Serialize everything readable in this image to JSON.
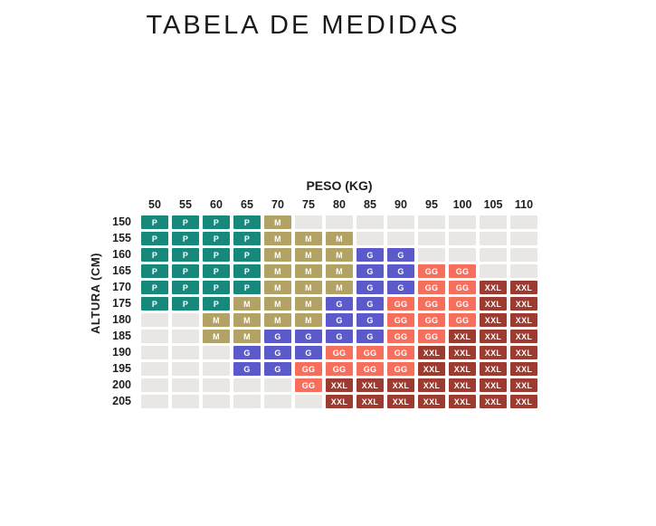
{
  "title": "TABELA DE MEDIDAS",
  "colors": {
    "background": "#ffffff",
    "title_text": "#1a1a1a",
    "label_text": "#1e1e1e",
    "cell_text": "#ffffff",
    "size_P": "#16897c",
    "size_M": "#b3a265",
    "size_G": "#5c59cb",
    "size_GG": "#f66e5c",
    "size_XXL": "#9d3b31",
    "empty_cell": "#e9e7e4"
  },
  "chart_data": {
    "type": "heatmap",
    "title": "TABELA DE MEDIDAS",
    "xlabel": "PESO (KG)",
    "ylabel": "ALTURA (CM)",
    "legend_position": "none",
    "grid": false,
    "sizes": [
      "P",
      "M",
      "G",
      "GG",
      "XXL"
    ],
    "size_colors": {
      "P": "#16897c",
      "M": "#b3a265",
      "G": "#5c59cb",
      "GG": "#f66e5c",
      "XXL": "#9d3b31",
      "": "#e9e7e4"
    },
    "x_categories": [
      "50",
      "55",
      "60",
      "65",
      "70",
      "75",
      "80",
      "85",
      "90",
      "95",
      "100",
      "105",
      "110"
    ],
    "y_categories": [
      "150",
      "155",
      "160",
      "165",
      "170",
      "175",
      "180",
      "185",
      "190",
      "195",
      "200",
      "205"
    ],
    "cell_values": [
      [
        "P",
        "P",
        "P",
        "P",
        "M",
        "",
        "",
        "",
        "",
        "",
        "",
        "",
        ""
      ],
      [
        "P",
        "P",
        "P",
        "P",
        "M",
        "M",
        "M",
        "",
        "",
        "",
        "",
        "",
        ""
      ],
      [
        "P",
        "P",
        "P",
        "P",
        "M",
        "M",
        "M",
        "G",
        "G",
        "",
        "",
        "",
        ""
      ],
      [
        "P",
        "P",
        "P",
        "P",
        "M",
        "M",
        "M",
        "G",
        "G",
        "GG",
        "GG",
        "",
        ""
      ],
      [
        "P",
        "P",
        "P",
        "P",
        "M",
        "M",
        "M",
        "G",
        "G",
        "GG",
        "GG",
        "XXL",
        "XXL"
      ],
      [
        "P",
        "P",
        "P",
        "M",
        "M",
        "M",
        "G",
        "G",
        "GG",
        "GG",
        "GG",
        "XXL",
        "XXL"
      ],
      [
        "",
        "",
        "M",
        "M",
        "M",
        "M",
        "G",
        "G",
        "GG",
        "GG",
        "GG",
        "XXL",
        "XXL"
      ],
      [
        "",
        "",
        "M",
        "M",
        "G",
        "G",
        "G",
        "G",
        "GG",
        "GG",
        "XXL",
        "XXL",
        "XXL"
      ],
      [
        "",
        "",
        "",
        "G",
        "G",
        "G",
        "GG",
        "GG",
        "GG",
        "XXL",
        "XXL",
        "XXL",
        "XXL"
      ],
      [
        "",
        "",
        "",
        "G",
        "G",
        "GG",
        "GG",
        "GG",
        "GG",
        "XXL",
        "XXL",
        "XXL",
        "XXL"
      ],
      [
        "",
        "",
        "",
        "",
        "",
        "GG",
        "XXL",
        "XXL",
        "XXL",
        "XXL",
        "XXL",
        "XXL",
        "XXL"
      ],
      [
        "",
        "",
        "",
        "",
        "",
        "",
        "XXL",
        "XXL",
        "XXL",
        "XXL",
        "XXL",
        "XXL",
        "XXL"
      ]
    ]
  }
}
